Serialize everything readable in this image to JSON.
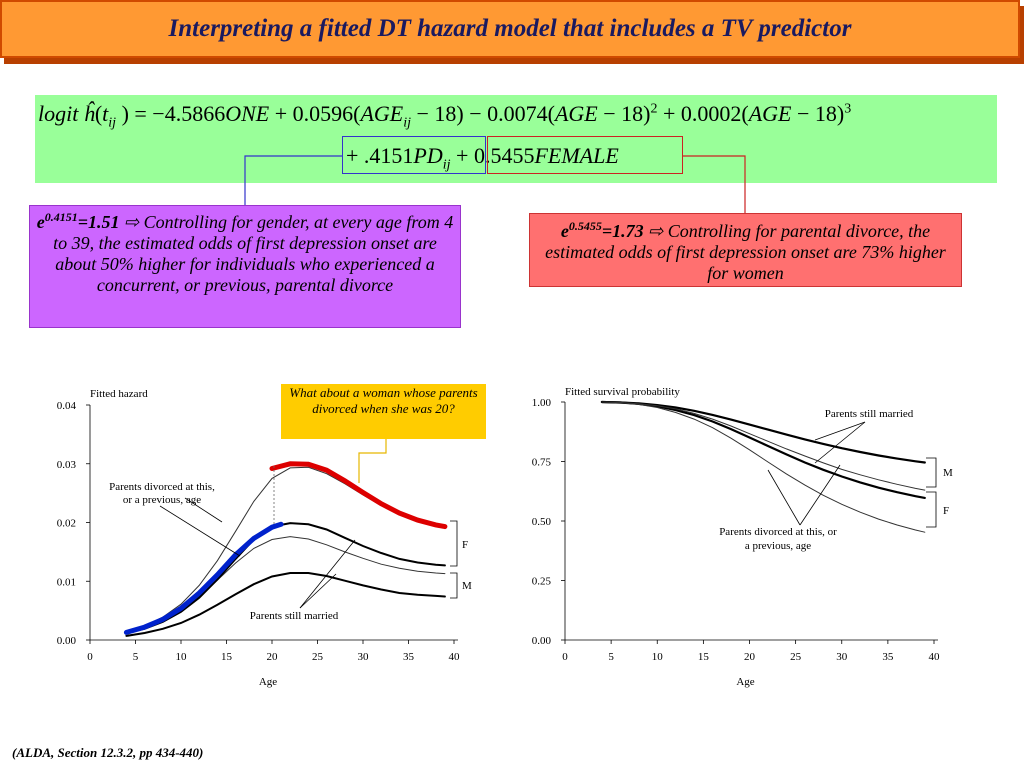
{
  "title": "Interpreting a fitted DT hazard model that includes a TV predictor",
  "equation": {
    "line1": [
      {
        "t": "logit ",
        "i": true
      },
      {
        "t": "ĥ",
        "i": true
      },
      {
        "t": "(",
        "i": false
      },
      {
        "t": "t",
        "i": true
      },
      {
        "t": "ij",
        "i": true,
        "sub": true
      },
      {
        "t": " ) = −4.5866",
        "i": false
      },
      {
        "t": "ONE",
        "i": true
      },
      {
        "t": " + 0.0596(",
        "i": false
      },
      {
        "t": "AGE",
        "i": true
      },
      {
        "t": "ij",
        "i": true,
        "sub": true
      },
      {
        "t": " − 18) − 0.0074(",
        "i": false
      },
      {
        "t": "AGE",
        "i": true
      },
      {
        "t": " − 18)",
        "i": false
      },
      {
        "t": "2",
        "i": false,
        "sup": true
      },
      {
        "t": " + 0.0002(",
        "i": false
      },
      {
        "t": "AGE",
        "i": true
      },
      {
        "t": " − 18)",
        "i": false
      },
      {
        "t": "3",
        "i": false,
        "sup": true
      }
    ],
    "line2": [
      {
        "t": "+ .4151",
        "i": false
      },
      {
        "t": "PD",
        "i": true
      },
      {
        "t": "ij",
        "i": true,
        "sub": true
      },
      {
        "t": " + 0.5455",
        "i": false
      },
      {
        "t": "FEMALE",
        "i": true
      }
    ]
  },
  "callout_left": {
    "base": "e",
    "exponent": "0.4151",
    "value": "=1.51",
    "arrow": "⇨",
    "text": "Controlling for gender, at every age from 4 to 39, the estimated odds of first depression onset are about 50% higher for individuals who experienced a concurrent, or previous, parental divorce"
  },
  "callout_right": {
    "base": "e",
    "exponent": "0.5455",
    "value": "=1.73",
    "arrow": "⇨",
    "text": "Controlling for parental divorce, the estimated odds of first depression onset are 73% higher for women"
  },
  "note": "What about a woman whose parents divorced when she was 20?",
  "footer": "(ALDA, Section 12.3.2, pp 434-440)",
  "colors": {
    "title_bg": "#ff9933",
    "equation_bg": "#99ff99",
    "left_callout_bg": "#cc66ff",
    "right_callout_bg": "#ff7070",
    "note_bg": "#ffcc00",
    "highlight_blue": "#0000cc",
    "highlight_red": "#dd0000"
  },
  "chart_data": [
    {
      "type": "line",
      "title": "",
      "ylabel": "Fitted   hazard",
      "xlabel": "Age",
      "xlim": [
        0,
        40
      ],
      "ylim": [
        0,
        0.04
      ],
      "xticks": [
        "0",
        "5",
        "10",
        "15",
        "20",
        "25",
        "30",
        "35",
        "40"
      ],
      "yticks": [
        "0.00",
        "0.01",
        "0.02",
        "0.03",
        "0.04"
      ],
      "series": [
        {
          "x": [
            4,
            6,
            8,
            10,
            12,
            14,
            16,
            18,
            20,
            22,
            24,
            26,
            28,
            30,
            32,
            34,
            36,
            38,
            39
          ],
          "values": [
            0.0015,
            0.0024,
            0.0039,
            0.0061,
            0.0093,
            0.0135,
            0.0185,
            0.0236,
            0.0275,
            0.0293,
            0.0294,
            0.0283,
            0.0266,
            0.0247,
            0.0229,
            0.0213,
            0.0202,
            0.0195,
            0.0193
          ]
        },
        {
          "x": [
            4,
            6,
            8,
            10,
            12,
            14,
            16,
            18,
            20,
            22,
            24,
            26,
            28,
            30,
            32,
            34,
            36,
            38,
            39
          ],
          "values": [
            0.0013,
            0.0021,
            0.0033,
            0.005,
            0.0074,
            0.0102,
            0.0131,
            0.0156,
            0.0171,
            0.0176,
            0.0172,
            0.0162,
            0.015,
            0.0139,
            0.0129,
            0.0122,
            0.0117,
            0.0114,
            0.0113
          ]
        },
        {
          "x": [
            4,
            6,
            8,
            10,
            12,
            14,
            16,
            18,
            20,
            22,
            24,
            26,
            28,
            30,
            32,
            34,
            36,
            38,
            39
          ],
          "values": [
            0.0012,
            0.0019,
            0.0031,
            0.0048,
            0.0072,
            0.0103,
            0.0138,
            0.0171,
            0.0193,
            0.0199,
            0.0197,
            0.0188,
            0.0174,
            0.016,
            0.0148,
            0.0138,
            0.0132,
            0.0128,
            0.0127
          ]
        },
        {
          "x": [
            4,
            6,
            8,
            10,
            12,
            14,
            16,
            18,
            20,
            22,
            24,
            26,
            28,
            30,
            32,
            34,
            36,
            38,
            39
          ],
          "values": [
            0.0007,
            0.0012,
            0.0019,
            0.0029,
            0.0043,
            0.006,
            0.0078,
            0.0095,
            0.0108,
            0.0114,
            0.0114,
            0.0109,
            0.0101,
            0.0093,
            0.0086,
            0.008,
            0.0077,
            0.0075,
            0.0074
          ]
        },
        {
          "x": [
            4,
            6,
            8,
            10,
            12,
            14,
            16,
            18,
            20,
            21
          ],
          "values": [
            0.0013,
            0.0022,
            0.0035,
            0.0054,
            0.008,
            0.0111,
            0.0145,
            0.0173,
            0.0192,
            0.0197
          ]
        },
        {
          "x": [
            20,
            22,
            24,
            26,
            28,
            30,
            32,
            34,
            36,
            38,
            39
          ],
          "values": [
            0.0292,
            0.03,
            0.0299,
            0.0289,
            0.0271,
            0.0251,
            0.0232,
            0.0216,
            0.0204,
            0.0196,
            0.0193
          ]
        }
      ],
      "annotations": [
        "Parents divorced at this, or a previous, age",
        "Parents still married",
        "F",
        "M"
      ]
    },
    {
      "type": "line",
      "title": "",
      "ylabel": "Fitted   survival   probability",
      "xlabel": "Age",
      "xlim": [
        0,
        40
      ],
      "ylim": [
        0,
        1
      ],
      "xticks": [
        "0",
        "5",
        "10",
        "15",
        "20",
        "25",
        "30",
        "35",
        "40"
      ],
      "yticks": [
        "0.00",
        "0.25",
        "0.50",
        "0.75",
        "1.00"
      ],
      "series": [
        {
          "x": [
            4,
            6,
            8,
            10,
            12,
            14,
            16,
            18,
            20,
            22,
            24,
            26,
            28,
            30,
            32,
            34,
            36,
            38,
            39
          ],
          "values": [
            1.0,
            0.998,
            0.994,
            0.987,
            0.977,
            0.963,
            0.946,
            0.926,
            0.905,
            0.884,
            0.863,
            0.843,
            0.824,
            0.806,
            0.79,
            0.775,
            0.762,
            0.751,
            0.746
          ]
        },
        {
          "x": [
            4,
            6,
            8,
            10,
            12,
            14,
            16,
            18,
            20,
            22,
            24,
            26,
            28,
            30,
            32,
            34,
            36,
            38,
            39
          ],
          "values": [
            1.0,
            0.998,
            0.992,
            0.982,
            0.966,
            0.945,
            0.918,
            0.886,
            0.851,
            0.815,
            0.78,
            0.746,
            0.715,
            0.687,
            0.662,
            0.64,
            0.621,
            0.604,
            0.597
          ]
        },
        {
          "x": [
            4,
            6,
            8,
            10,
            12,
            14,
            16,
            18,
            20,
            22,
            24,
            26,
            28,
            30,
            32,
            34,
            36,
            38,
            39
          ],
          "values": [
            1.0,
            0.998,
            0.993,
            0.984,
            0.971,
            0.952,
            0.928,
            0.899,
            0.867,
            0.835,
            0.803,
            0.773,
            0.744,
            0.717,
            0.694,
            0.673,
            0.654,
            0.637,
            0.63
          ]
        },
        {
          "x": [
            4,
            6,
            8,
            10,
            12,
            14,
            16,
            18,
            20,
            22,
            24,
            26,
            28,
            30,
            32,
            34,
            36,
            38,
            39
          ],
          "values": [
            1.0,
            0.997,
            0.99,
            0.977,
            0.956,
            0.928,
            0.892,
            0.848,
            0.799,
            0.748,
            0.698,
            0.651,
            0.608,
            0.57,
            0.537,
            0.508,
            0.483,
            0.462,
            0.453
          ]
        }
      ],
      "annotations": [
        "Parents still married",
        "Parents divorced at this, or a previous, age",
        "M",
        "F"
      ]
    }
  ]
}
